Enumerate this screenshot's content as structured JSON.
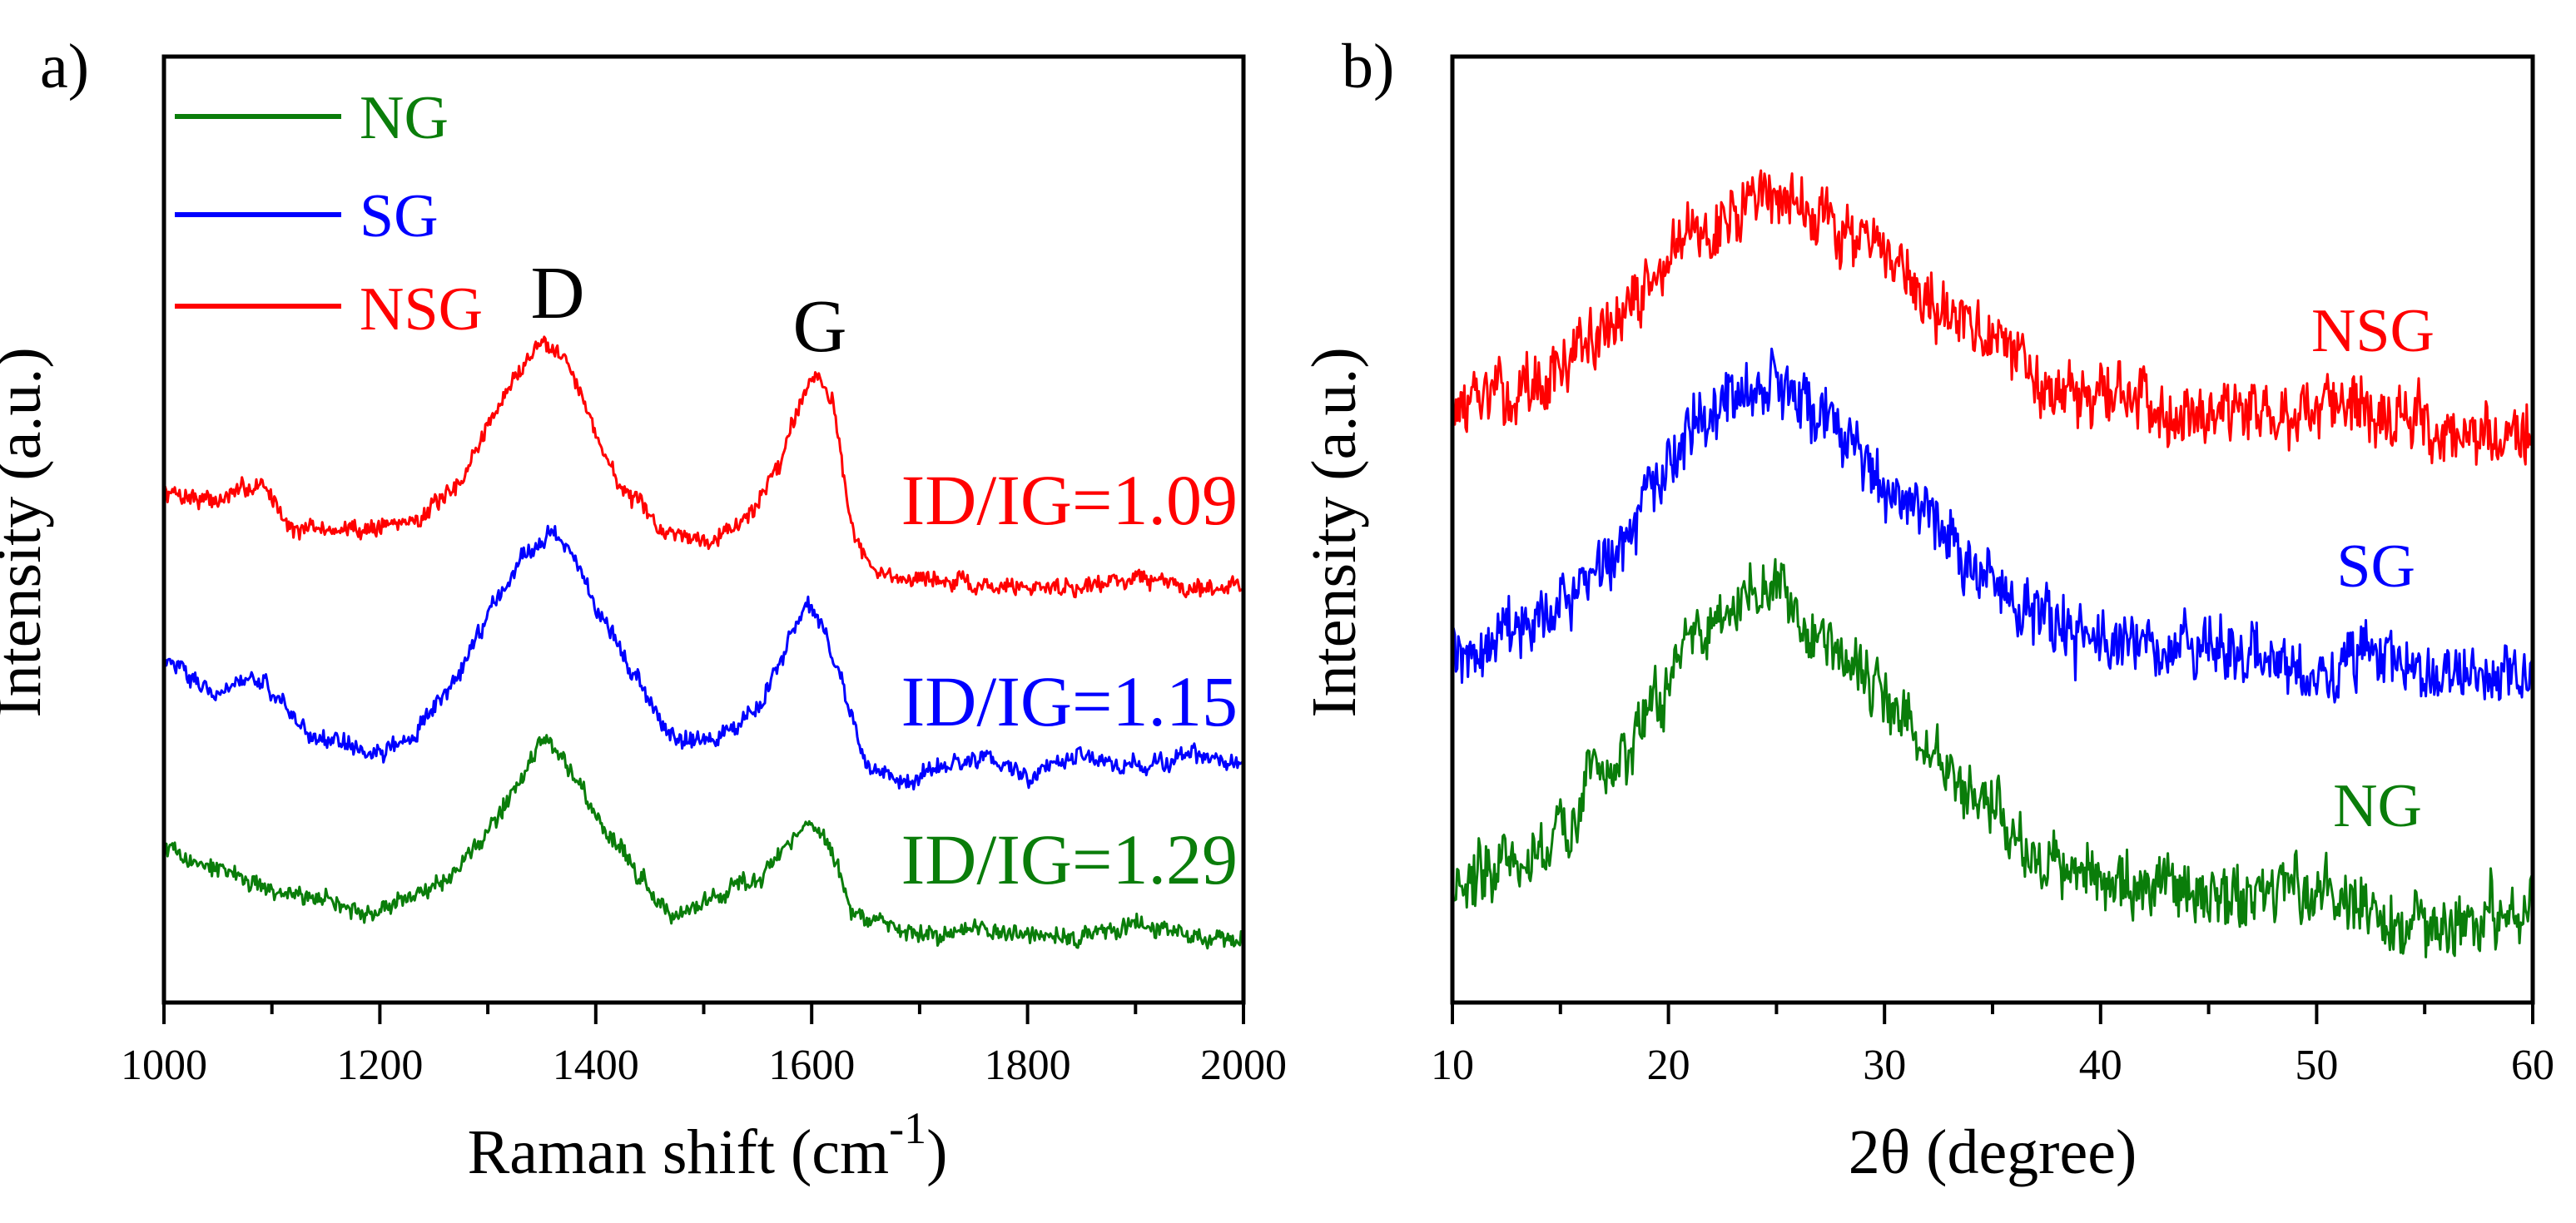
{
  "chart_data": [
    {
      "panel_label": "a)",
      "type": "line",
      "xlabel_main": "Raman shift (cm",
      "xlabel_sup": "-1",
      "xlabel_close": ")",
      "ylabel": "Intensity (a.u.)",
      "xlim": [
        1000,
        2000
      ],
      "ylim": [
        0,
        10
      ],
      "xticks": [
        "1000",
        "1200",
        "1400",
        "1600",
        "1800",
        "2000"
      ],
      "yticks_shown": false,
      "legend": {
        "position": "top-left",
        "entries": [
          "NG",
          "SG",
          "NSG"
        ]
      },
      "annotations": {
        "D": "D",
        "G": "G",
        "ratios": [
          "ID/IG=1.09",
          "ID/IG=1.15",
          "ID/IG=1.29"
        ]
      },
      "series": [
        {
          "name": "NSG",
          "color": "#ff0000",
          "points": [
            [
              1000,
              5.4
            ],
            [
              1050,
              5.3
            ],
            [
              1090,
              5.5
            ],
            [
              1120,
              5.0
            ],
            [
              1180,
              5.0
            ],
            [
              1230,
              5.1
            ],
            [
              1270,
              5.4
            ],
            [
              1300,
              6.1
            ],
            [
              1330,
              6.7
            ],
            [
              1350,
              7.0
            ],
            [
              1370,
              6.9
            ],
            [
              1390,
              6.3
            ],
            [
              1420,
              5.5
            ],
            [
              1460,
              5.0
            ],
            [
              1500,
              4.9
            ],
            [
              1540,
              5.1
            ],
            [
              1570,
              5.7
            ],
            [
              1590,
              6.4
            ],
            [
              1605,
              6.7
            ],
            [
              1620,
              6.3
            ],
            [
              1640,
              4.9
            ],
            [
              1660,
              4.5
            ],
            [
              1700,
              4.5
            ],
            [
              1750,
              4.4
            ],
            [
              1800,
              4.4
            ],
            [
              1850,
              4.4
            ],
            [
              1900,
              4.5
            ],
            [
              1950,
              4.4
            ],
            [
              2000,
              4.4
            ]
          ]
        },
        {
          "name": "SG",
          "color": "#0000ff",
          "points": [
            [
              1000,
              3.6
            ],
            [
              1050,
              3.3
            ],
            [
              1090,
              3.4
            ],
            [
              1130,
              2.9
            ],
            [
              1190,
              2.6
            ],
            [
              1230,
              2.8
            ],
            [
              1270,
              3.4
            ],
            [
              1300,
              4.1
            ],
            [
              1330,
              4.7
            ],
            [
              1360,
              5.0
            ],
            [
              1380,
              4.7
            ],
            [
              1400,
              4.2
            ],
            [
              1430,
              3.6
            ],
            [
              1470,
              2.8
            ],
            [
              1510,
              2.8
            ],
            [
              1550,
              3.1
            ],
            [
              1580,
              3.8
            ],
            [
              1595,
              4.2
            ],
            [
              1610,
              4.0
            ],
            [
              1630,
              3.3
            ],
            [
              1650,
              2.5
            ],
            [
              1680,
              2.3
            ],
            [
              1720,
              2.5
            ],
            [
              1760,
              2.6
            ],
            [
              1800,
              2.4
            ],
            [
              1850,
              2.6
            ],
            [
              1900,
              2.5
            ],
            [
              1950,
              2.6
            ],
            [
              2000,
              2.5
            ]
          ]
        },
        {
          "name": "NG",
          "color": "#0a7d0a",
          "points": [
            [
              1000,
              1.6
            ],
            [
              1050,
              1.4
            ],
            [
              1100,
              1.2
            ],
            [
              1150,
              1.1
            ],
            [
              1190,
              0.9
            ],
            [
              1230,
              1.1
            ],
            [
              1270,
              1.4
            ],
            [
              1300,
              1.8
            ],
            [
              1330,
              2.4
            ],
            [
              1350,
              2.8
            ],
            [
              1370,
              2.6
            ],
            [
              1400,
              2.0
            ],
            [
              1430,
              1.5
            ],
            [
              1470,
              0.9
            ],
            [
              1510,
              1.1
            ],
            [
              1550,
              1.3
            ],
            [
              1580,
              1.7
            ],
            [
              1595,
              1.9
            ],
            [
              1610,
              1.8
            ],
            [
              1625,
              1.4
            ],
            [
              1640,
              0.9
            ],
            [
              1680,
              0.8
            ],
            [
              1720,
              0.7
            ],
            [
              1760,
              0.8
            ],
            [
              1800,
              0.7
            ],
            [
              1850,
              0.7
            ],
            [
              1900,
              0.8
            ],
            [
              1950,
              0.7
            ],
            [
              2000,
              0.7
            ]
          ]
        }
      ]
    },
    {
      "panel_label": "b)",
      "type": "line",
      "xlabel": "2θ (degree)",
      "ylabel": "Intensity (a.u.)",
      "xlim": [
        10,
        60
      ],
      "ylim": [
        0,
        10
      ],
      "xticks": [
        "10",
        "20",
        "30",
        "40",
        "50",
        "60"
      ],
      "yticks_shown": false,
      "series": [
        {
          "name": "NSG",
          "label": "NSG",
          "color": "#ff0000",
          "points": [
            [
              10,
              6.3
            ],
            [
              14,
              6.5
            ],
            [
              18,
              7.3
            ],
            [
              21,
              8.1
            ],
            [
              24,
              8.5
            ],
            [
              26,
              8.5
            ],
            [
              28,
              8.2
            ],
            [
              31,
              7.6
            ],
            [
              34,
              7.1
            ],
            [
              37,
              6.6
            ],
            [
              40,
              6.4
            ],
            [
              45,
              6.3
            ],
            [
              50,
              6.2
            ],
            [
              55,
              6.1
            ],
            [
              60,
              6.0
            ]
          ]
        },
        {
          "name": "SG",
          "label": "SG",
          "color": "#0000ff",
          "points": [
            [
              10,
              3.7
            ],
            [
              14,
              3.9
            ],
            [
              18,
              4.9
            ],
            [
              21,
              5.9
            ],
            [
              23,
              6.4
            ],
            [
              25,
              6.6
            ],
            [
              27,
              6.2
            ],
            [
              30,
              5.5
            ],
            [
              33,
              4.8
            ],
            [
              36,
              4.2
            ],
            [
              40,
              3.8
            ],
            [
              45,
              3.7
            ],
            [
              50,
              3.6
            ],
            [
              55,
              3.6
            ],
            [
              60,
              3.4
            ]
          ]
        },
        {
          "name": "NG",
          "label": "NG",
          "color": "#0a7d0a",
          "points": [
            [
              10,
              1.2
            ],
            [
              14,
              1.5
            ],
            [
              18,
              2.7
            ],
            [
              21,
              3.8
            ],
            [
              23,
              4.2
            ],
            [
              25,
              4.3
            ],
            [
              28,
              3.7
            ],
            [
              31,
              3.0
            ],
            [
              34,
              2.2
            ],
            [
              37,
              1.6
            ],
            [
              40,
              1.3
            ],
            [
              45,
              1.2
            ],
            [
              50,
              1.1
            ],
            [
              55,
              0.9
            ],
            [
              60,
              0.9
            ]
          ]
        }
      ]
    }
  ]
}
